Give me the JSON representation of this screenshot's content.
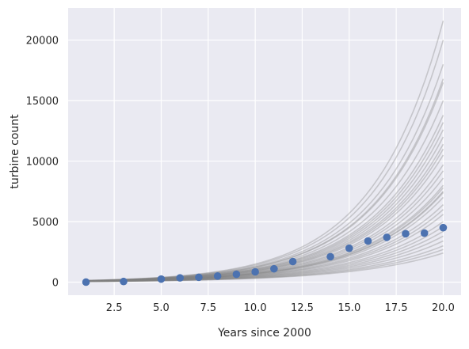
{
  "chart_data": {
    "type": "scatter",
    "xlabel": "Years since 2000",
    "ylabel": "turbine count",
    "xlim": [
      0.05,
      20.95
    ],
    "ylim": [
      -1080,
      22660
    ],
    "x_ticks": [
      2.5,
      5.0,
      7.5,
      10.0,
      12.5,
      15.0,
      17.5,
      20.0
    ],
    "x_tick_labels": [
      "2.5",
      "5.0",
      "7.5",
      "10.0",
      "12.5",
      "15.0",
      "17.5",
      "20.0"
    ],
    "y_ticks": [
      0,
      5000,
      10000,
      15000,
      20000
    ],
    "y_tick_labels": [
      "0",
      "5000",
      "10000",
      "15000",
      "20000"
    ],
    "grid": true,
    "background_color": "#EAEAF2",
    "grid_color": "#FFFFFF",
    "point_color": "#4C72B0",
    "curve_color": "#808080",
    "observed": {
      "x": [
        1,
        3,
        5,
        6,
        7,
        8,
        9,
        10,
        11,
        12,
        14,
        15,
        16,
        17,
        18,
        19,
        20
      ],
      "y": [
        0,
        50,
        250,
        350,
        400,
        500,
        650,
        850,
        1100,
        1700,
        2100,
        2800,
        3400,
        3700,
        4000,
        4050,
        4500
      ]
    },
    "curves_x_range": [
      1,
      20
    ],
    "sample_curves_endpoints": [
      {
        "y1": 135,
        "y20": 21600
      },
      {
        "y1": 130,
        "y20": 20000
      },
      {
        "y1": 125,
        "y20": 18000
      },
      {
        "y1": 120,
        "y20": 16800
      },
      {
        "y1": 118,
        "y20": 16500
      },
      {
        "y1": 115,
        "y20": 15000
      },
      {
        "y1": 112,
        "y20": 13800
      },
      {
        "y1": 110,
        "y20": 13200
      },
      {
        "y1": 108,
        "y20": 12600
      },
      {
        "y1": 105,
        "y20": 12000
      },
      {
        "y1": 103,
        "y20": 11400
      },
      {
        "y1": 100,
        "y20": 11000
      },
      {
        "y1": 98,
        "y20": 10500
      },
      {
        "y1": 95,
        "y20": 9700
      },
      {
        "y1": 92,
        "y20": 9200
      },
      {
        "y1": 90,
        "y20": 8600
      },
      {
        "y1": 88,
        "y20": 8000
      },
      {
        "y1": 85,
        "y20": 7800
      },
      {
        "y1": 82,
        "y20": 7500
      },
      {
        "y1": 80,
        "y20": 7400
      },
      {
        "y1": 78,
        "y20": 7000
      },
      {
        "y1": 75,
        "y20": 6400
      },
      {
        "y1": 72,
        "y20": 6000
      },
      {
        "y1": 70,
        "y20": 5600
      },
      {
        "y1": 68,
        "y20": 5000
      },
      {
        "y1": 65,
        "y20": 4600
      },
      {
        "y1": 62,
        "y20": 4200
      },
      {
        "y1": 60,
        "y20": 3800
      },
      {
        "y1": 58,
        "y20": 3400
      },
      {
        "y1": 55,
        "y20": 3000
      },
      {
        "y1": 52,
        "y20": 2700
      },
      {
        "y1": 50,
        "y20": 2400
      }
    ]
  }
}
